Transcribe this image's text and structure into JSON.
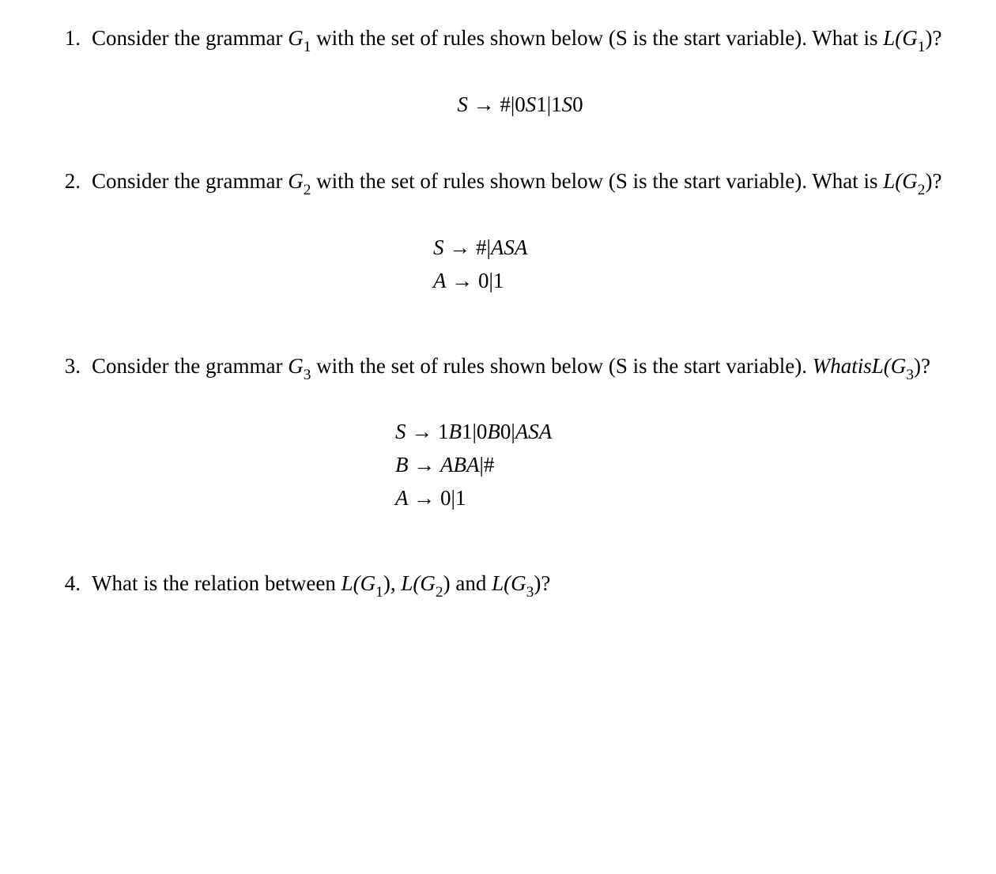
{
  "items": [
    {
      "number": "1.",
      "prose_pre": "Consider the grammar ",
      "g_var": "G",
      "g_sub": "1",
      "prose_mid": " with the set of rules shown below (S is the start variable). What is ",
      "l_expr": "L(G",
      "l_sub": "1",
      "l_close": ")?",
      "eq_lines": [
        {
          "lhs": "S",
          "arrow": " → ",
          "rhs": "#|0S1|1S0",
          "upright_segments": [
            "#|0",
            "1|1",
            "0"
          ],
          "italic_segments": [
            "S",
            "S"
          ]
        }
      ]
    },
    {
      "number": "2.",
      "prose_pre": "Consider the grammar ",
      "g_var": "G",
      "g_sub": "2",
      "prose_mid": " with the set of rules shown below (S is the start variable). What is ",
      "l_expr": "L(G",
      "l_sub": "2",
      "l_close": ")?",
      "eq_lines": [
        {
          "lhs": "S",
          "rhs_display": "#|ASA"
        },
        {
          "lhs": "A",
          "rhs_display": "0|1"
        }
      ]
    },
    {
      "number": "3.",
      "prose_pre": "Consider the grammar ",
      "g_var": "G",
      "g_sub": "3",
      "prose_mid": " with the set of rules shown below (S is the start variable). ",
      "whatis_italic": "WhatisL(G",
      "whatis_sub": "3",
      "whatis_close": ")?",
      "eq_lines": [
        {
          "lhs": "S",
          "rhs_display": "1B1|0B0|ASA"
        },
        {
          "lhs": "B",
          "rhs_display": "ABA|#"
        },
        {
          "lhs": "A",
          "rhs_display": "0|1"
        }
      ]
    },
    {
      "number": "4.",
      "prose_full_pre": "What is the relation between ",
      "lg1": "L(G",
      "lg1_sub": "1",
      "lg1_close": "), ",
      "lg2": "L(G",
      "lg2_sub": "2",
      "lg2_close": ") and ",
      "lg3": "L(G",
      "lg3_sub": "3",
      "lg3_close": ")?"
    }
  ],
  "arrow": " → ",
  "colors": {
    "text": "#000000",
    "background": "#ffffff"
  },
  "fontsize_body": 27,
  "fontsize_sub": 19
}
